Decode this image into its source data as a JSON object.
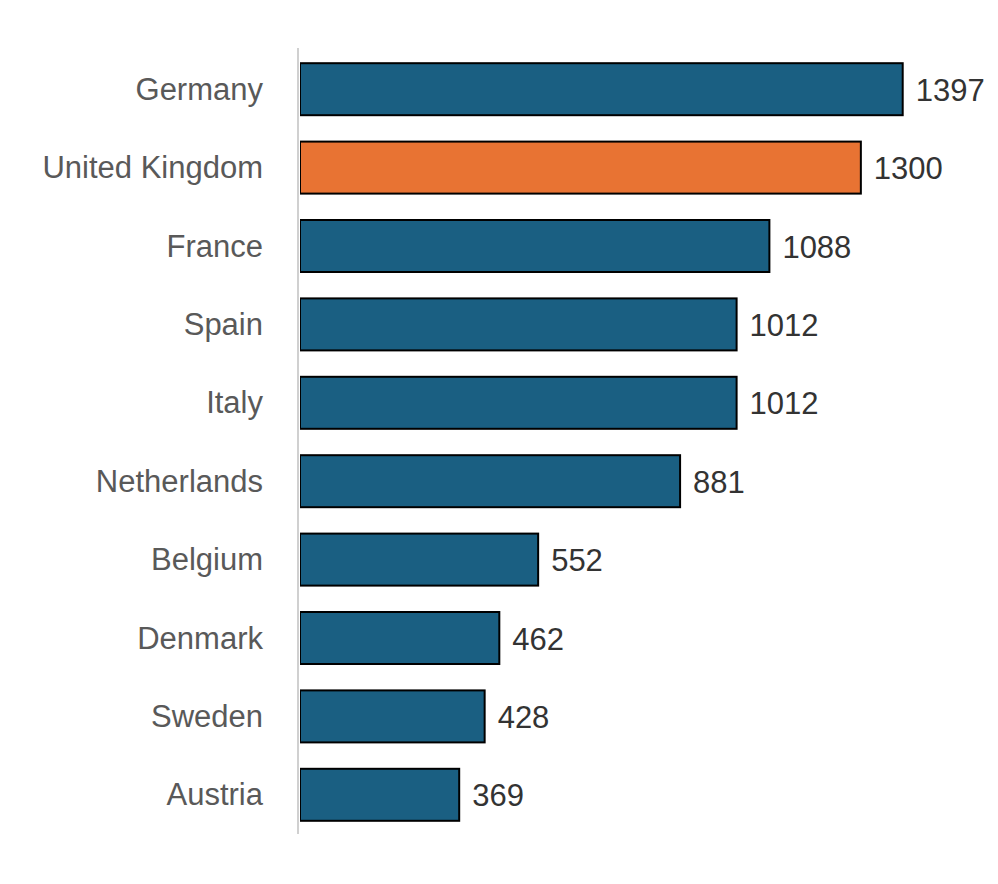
{
  "chart_data": {
    "type": "bar",
    "orientation": "horizontal",
    "categories": [
      "Germany",
      "United Kingdom",
      "France",
      "Spain",
      "Italy",
      "Netherlands",
      "Belgium",
      "Denmark",
      "Sweden",
      "Austria"
    ],
    "values": [
      1397,
      1300,
      1088,
      1012,
      1012,
      881,
      552,
      462,
      428,
      369
    ],
    "colors": [
      "#1a5f82",
      "#e87333",
      "#1a5f82",
      "#1a5f82",
      "#1a5f82",
      "#1a5f82",
      "#1a5f82",
      "#1a5f82",
      "#1a5f82",
      "#1a5f82"
    ],
    "xlim": [
      0,
      1400
    ],
    "grid": false,
    "data_labels": true,
    "tick_labels": "y"
  }
}
